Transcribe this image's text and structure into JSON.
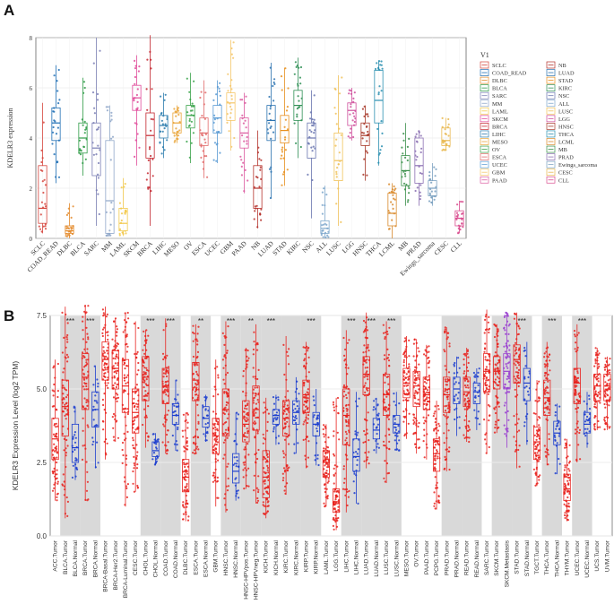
{
  "panel_labels": {
    "a": "A",
    "b": "B"
  },
  "chart_data": [
    {
      "type": "box",
      "panel": "A",
      "title": "",
      "xlabel": "",
      "ylabel": "KDELR3 expression",
      "ylim": [
        0,
        8
      ],
      "yticks": [
        0,
        2,
        4,
        6,
        8
      ],
      "grid": true,
      "legend_title": "V1",
      "legend_position": "right",
      "categories": [
        "SCLC",
        "COAD_READ",
        "DLBC",
        "BLCA",
        "SARC",
        "MM",
        "LAML",
        "SKCM",
        "BRCA",
        "LIHC",
        "MESO",
        "OV",
        "ESCA",
        "UCEC",
        "GBM",
        "PAAD",
        "NB",
        "LUAD",
        "STAD",
        "KIRC",
        "NSC",
        "ALL",
        "LUSC",
        "LGG",
        "HNSC",
        "THCA",
        "LCML",
        "MB",
        "PRAD",
        "Ewings_sarcoma",
        "CESC",
        "CLL"
      ],
      "colors": [
        "#d6453d",
        "#1f6fb5",
        "#e48a2a",
        "#2f9b47",
        "#7b7fb5",
        "#8fa7c9",
        "#f2c94c",
        "#e04a9a",
        "#c4262f",
        "#2b7cae",
        "#e9a53a",
        "#3aa34a",
        "#e26b6b",
        "#5a9bd4",
        "#f5c76a",
        "#dc5aa0",
        "#b5312b",
        "#2a72b0",
        "#e8901f",
        "#2f8f55",
        "#6a76b0",
        "#7fa8cc",
        "#f0c25a",
        "#cf4e9b",
        "#a83a2a",
        "#2a8fb0",
        "#d98a2c",
        "#3a8f4a",
        "#8a6fb2",
        "#7aa0c0",
        "#e9b850",
        "#d94b8e"
      ],
      "stats": [
        {
          "min": 0.2,
          "q1": 0.6,
          "median": 1.2,
          "q3": 2.9,
          "max": 5.4
        },
        {
          "min": 2.2,
          "q1": 3.9,
          "median": 4.6,
          "q3": 5.2,
          "max": 6.9
        },
        {
          "min": 0.0,
          "q1": 0.2,
          "median": 0.3,
          "q3": 0.5,
          "max": 1.4
        },
        {
          "min": 2.5,
          "q1": 3.4,
          "median": 4.0,
          "q3": 4.6,
          "max": 6.4
        },
        {
          "min": 0.5,
          "q1": 2.5,
          "median": 3.6,
          "q3": 4.6,
          "max": 8.0
        },
        {
          "min": 0.1,
          "q1": 0.2,
          "median": 1.5,
          "q3": 3.9,
          "max": 5.3
        },
        {
          "min": 0.1,
          "q1": 0.3,
          "median": 0.6,
          "q3": 1.2,
          "max": 2.4
        },
        {
          "min": 2.9,
          "q1": 5.1,
          "median": 5.6,
          "q3": 6.1,
          "max": 7.3
        },
        {
          "min": 0.5,
          "q1": 3.2,
          "median": 4.1,
          "q3": 5.0,
          "max": 8.1
        },
        {
          "min": 3.2,
          "q1": 4.0,
          "median": 4.5,
          "q3": 4.9,
          "max": 5.8
        },
        {
          "min": 3.8,
          "q1": 4.2,
          "median": 4.6,
          "q3": 5.0,
          "max": 5.3
        },
        {
          "min": 3.0,
          "q1": 4.4,
          "median": 4.9,
          "q3": 5.3,
          "max": 6.6
        },
        {
          "min": 2.4,
          "q1": 3.7,
          "median": 4.2,
          "q3": 4.8,
          "max": 6.3
        },
        {
          "min": 3.0,
          "q1": 4.2,
          "median": 4.8,
          "q3": 5.3,
          "max": 6.3
        },
        {
          "min": 3.5,
          "q1": 4.7,
          "median": 5.4,
          "q3": 5.8,
          "max": 7.9
        },
        {
          "min": 1.8,
          "q1": 3.6,
          "median": 4.2,
          "q3": 4.8,
          "max": 5.8
        },
        {
          "min": 0.4,
          "q1": 1.2,
          "median": 2.0,
          "q3": 2.9,
          "max": 4.3
        },
        {
          "min": 1.6,
          "q1": 3.9,
          "median": 4.7,
          "q3": 5.3,
          "max": 7.0
        },
        {
          "min": 2.1,
          "q1": 3.8,
          "median": 4.3,
          "q3": 4.9,
          "max": 6.8
        },
        {
          "min": 3.2,
          "q1": 4.7,
          "median": 5.3,
          "q3": 5.9,
          "max": 7.2
        },
        {
          "min": 0.8,
          "q1": 3.2,
          "median": 4.0,
          "q3": 4.6,
          "max": 5.9
        },
        {
          "min": 0.0,
          "q1": 0.2,
          "median": 0.4,
          "q3": 0.7,
          "max": 2.1
        },
        {
          "min": 0.5,
          "q1": 2.3,
          "median": 3.1,
          "q3": 4.2,
          "max": 6.5
        },
        {
          "min": 3.9,
          "q1": 4.5,
          "median": 5.1,
          "q3": 5.4,
          "max": 6.0
        },
        {
          "min": 2.3,
          "q1": 3.7,
          "median": 4.1,
          "q3": 4.6,
          "max": 5.3
        },
        {
          "min": 2.9,
          "q1": 4.6,
          "median": 5.5,
          "q3": 6.7,
          "max": 7.1
        },
        {
          "min": 0.0,
          "q1": 0.5,
          "median": 1.0,
          "q3": 1.8,
          "max": 2.2
        },
        {
          "min": 1.3,
          "q1": 2.1,
          "median": 2.7,
          "q3": 3.3,
          "max": 4.6
        },
        {
          "min": 1.3,
          "q1": 2.2,
          "median": 2.9,
          "q3": 4.0,
          "max": 4.3
        },
        {
          "min": 1.3,
          "q1": 1.7,
          "median": 2.0,
          "q3": 2.3,
          "max": 3.0
        },
        {
          "min": 3.5,
          "q1": 3.7,
          "median": 3.9,
          "q3": 4.4,
          "max": 4.8
        },
        {
          "min": 0.2,
          "q1": 0.5,
          "median": 0.8,
          "q3": 1.1,
          "max": 1.5
        }
      ]
    },
    {
      "type": "box",
      "panel": "B",
      "title": "",
      "xlabel": "",
      "ylabel": "KDELR3 Expression Level (log2 TPM)",
      "ylim": [
        0,
        7.5
      ],
      "yticks": [
        0.0,
        2.5,
        5.0,
        7.5
      ],
      "ytick_labels": [
        "0.0",
        "2.5",
        "5.0",
        "7.5"
      ],
      "grid": true,
      "legend": "none",
      "tumor_color": "#e8231f",
      "normal_color": "#1c3ecf",
      "metastasis_color": "#9a3fd0",
      "categories": [
        "ACC.Tumor",
        "BLCA.Tumor",
        "BLCA.Normal",
        "BRCA.Tumor",
        "BRCA.Normal",
        "BRCA-Basal.Tumor",
        "BRCA-Her2.Tumor",
        "BRCA-Luminal.Tumor",
        "CESC.Tumor",
        "CHOL.Tumor",
        "CHOL.Normal",
        "COAD.Tumor",
        "COAD.Normal",
        "DLBC.Tumor",
        "ESCA.Tumor",
        "ESCA.Normal",
        "GBM.Tumor",
        "HNSC.Tumor",
        "HNSC.Normal",
        "HNSC-HPVpos.Tumor",
        "HNSC-HPVneg.Tumor",
        "KICH.Tumor",
        "KICH.Normal",
        "KIRC.Tumor",
        "KIRC.Normal",
        "KIRP.Tumor",
        "KIRP.Normal",
        "LAML.Tumor",
        "LGG.Tumor",
        "LIHC.Tumor",
        "LIHC.Normal",
        "LUAD.Tumor",
        "LUAD.Normal",
        "LUSC.Tumor",
        "LUSC.Normal",
        "MESO.Tumor",
        "OV.Tumor",
        "PAAD.Tumor",
        "PCPG.Tumor",
        "PRAD.Tumor",
        "PRAD.Normal",
        "READ.Tumor",
        "READ.Normal",
        "SARC.Tumor",
        "SKCM.Tumor",
        "SKCM.Metastasis",
        "STAD.Tumor",
        "STAD.Normal",
        "TGCT.Tumor",
        "THCA.Tumor",
        "THCA.Normal",
        "THYM.Tumor",
        "UCEC.Tumor",
        "UCEC.Normal",
        "UCS.Tumor",
        "UVM.Tumor"
      ],
      "group_kind": [
        "T",
        "T",
        "N",
        "T",
        "N",
        "T",
        "T",
        "T",
        "T",
        "T",
        "N",
        "T",
        "N",
        "T",
        "T",
        "N",
        "T",
        "T",
        "N",
        "T",
        "T",
        "T",
        "N",
        "T",
        "N",
        "T",
        "N",
        "T",
        "T",
        "T",
        "N",
        "T",
        "N",
        "T",
        "N",
        "T",
        "T",
        "T",
        "T",
        "T",
        "N",
        "T",
        "N",
        "T",
        "T",
        "M",
        "T",
        "N",
        "T",
        "T",
        "N",
        "T",
        "T",
        "N",
        "T",
        "T"
      ],
      "shaded_bands": [
        [
          1,
          2
        ],
        [
          3,
          4
        ],
        [
          9,
          10
        ],
        [
          11,
          12
        ],
        [
          14,
          15
        ],
        [
          17,
          18
        ],
        [
          19,
          20
        ],
        [
          21,
          22
        ],
        [
          23,
          24
        ],
        [
          25,
          26
        ],
        [
          29,
          30
        ],
        [
          31,
          32
        ],
        [
          33,
          34
        ],
        [
          39,
          40
        ],
        [
          41,
          42
        ],
        [
          44,
          45
        ],
        [
          46,
          47
        ],
        [
          49,
          50
        ],
        [
          52,
          53
        ]
      ],
      "significance": [
        {
          "between": [
            1,
            2
          ],
          "label": "***"
        },
        {
          "between": [
            3,
            4
          ],
          "label": "***"
        },
        {
          "between": [
            9,
            10
          ],
          "label": "***"
        },
        {
          "between": [
            11,
            12
          ],
          "label": "***"
        },
        {
          "between": [
            14,
            15
          ],
          "label": "**"
        },
        {
          "between": [
            17,
            18
          ],
          "label": "***"
        },
        {
          "between": [
            19,
            20
          ],
          "label": "**"
        },
        {
          "between": [
            21,
            22
          ],
          "label": "***"
        },
        {
          "between": [
            25,
            26
          ],
          "label": "***"
        },
        {
          "between": [
            29,
            30
          ],
          "label": "***"
        },
        {
          "between": [
            31,
            32
          ],
          "label": "***"
        },
        {
          "between": [
            33,
            34
          ],
          "label": "***"
        },
        {
          "between": [
            46,
            47
          ],
          "label": "***"
        },
        {
          "between": [
            49,
            50
          ],
          "label": "***"
        },
        {
          "between": [
            52,
            53
          ],
          "label": "***"
        }
      ],
      "stats": [
        {
          "min": 1.2,
          "q1": 2.6,
          "median": 3.3,
          "q3": 4.0,
          "max": 6.0
        },
        {
          "min": 0.6,
          "q1": 3.4,
          "median": 4.4,
          "q3": 5.3,
          "max": 7.8
        },
        {
          "min": 1.9,
          "q1": 2.5,
          "median": 3.0,
          "q3": 3.8,
          "max": 4.4
        },
        {
          "min": 1.2,
          "q1": 4.3,
          "median": 5.4,
          "q3": 6.2,
          "max": 7.9
        },
        {
          "min": 2.3,
          "q1": 3.7,
          "median": 4.3,
          "q3": 4.9,
          "max": 5.8
        },
        {
          "min": 2.6,
          "q1": 5.3,
          "median": 6.0,
          "q3": 6.6,
          "max": 7.8
        },
        {
          "min": 3.2,
          "q1": 5.0,
          "median": 5.7,
          "q3": 6.3,
          "max": 7.4
        },
        {
          "min": 1.0,
          "q1": 4.2,
          "median": 5.1,
          "q3": 6.0,
          "max": 7.6
        },
        {
          "min": 1.5,
          "q1": 3.5,
          "median": 4.2,
          "q3": 5.0,
          "max": 7.3
        },
        {
          "min": 3.0,
          "q1": 4.6,
          "median": 5.4,
          "q3": 6.1,
          "max": 7.0
        },
        {
          "min": 2.4,
          "q1": 2.7,
          "median": 2.9,
          "q3": 3.2,
          "max": 3.5
        },
        {
          "min": 2.8,
          "q1": 4.5,
          "median": 5.1,
          "q3": 5.7,
          "max": 7.4
        },
        {
          "min": 2.9,
          "q1": 3.8,
          "median": 4.1,
          "q3": 4.5,
          "max": 5.3
        },
        {
          "min": 0.5,
          "q1": 1.5,
          "median": 2.0,
          "q3": 2.6,
          "max": 4.2
        },
        {
          "min": 2.8,
          "q1": 4.6,
          "median": 5.3,
          "q3": 5.9,
          "max": 7.2
        },
        {
          "min": 3.2,
          "q1": 3.7,
          "median": 4.0,
          "q3": 4.4,
          "max": 4.8
        },
        {
          "min": 1.0,
          "q1": 2.8,
          "median": 3.4,
          "q3": 4.0,
          "max": 6.0
        },
        {
          "min": 0.8,
          "q1": 3.4,
          "median": 4.3,
          "q3": 5.0,
          "max": 7.3
        },
        {
          "min": 1.2,
          "q1": 1.8,
          "median": 2.2,
          "q3": 2.8,
          "max": 4.2
        },
        {
          "min": 1.6,
          "q1": 3.2,
          "median": 3.8,
          "q3": 4.6,
          "max": 6.4
        },
        {
          "min": 1.1,
          "q1": 3.6,
          "median": 4.3,
          "q3": 5.1,
          "max": 7.2
        },
        {
          "min": 0.6,
          "q1": 1.3,
          "median": 2.0,
          "q3": 2.9,
          "max": 4.7
        },
        {
          "min": 3.1,
          "q1": 3.8,
          "median": 4.1,
          "q3": 4.3,
          "max": 4.8
        },
        {
          "min": 1.4,
          "q1": 3.4,
          "median": 4.0,
          "q3": 4.6,
          "max": 6.8
        },
        {
          "min": 2.8,
          "q1": 3.8,
          "median": 4.2,
          "q3": 4.6,
          "max": 5.4
        },
        {
          "min": 2.3,
          "q1": 4.2,
          "median": 4.8,
          "q3": 5.3,
          "max": 6.6
        },
        {
          "min": 2.4,
          "q1": 3.4,
          "median": 3.8,
          "q3": 4.2,
          "max": 5.0
        },
        {
          "min": 1.0,
          "q1": 2.0,
          "median": 2.5,
          "q3": 2.9,
          "max": 3.8
        },
        {
          "min": 0.2,
          "q1": 0.8,
          "median": 1.1,
          "q3": 1.6,
          "max": 4.7
        },
        {
          "min": 0.8,
          "q1": 3.1,
          "median": 4.1,
          "q3": 5.0,
          "max": 7.0
        },
        {
          "min": 1.1,
          "q1": 2.2,
          "median": 2.7,
          "q3": 3.3,
          "max": 4.9
        },
        {
          "min": 2.3,
          "q1": 4.8,
          "median": 5.5,
          "q3": 6.1,
          "max": 7.6
        },
        {
          "min": 2.8,
          "q1": 3.3,
          "median": 3.6,
          "q3": 4.0,
          "max": 4.7
        },
        {
          "min": 1.8,
          "q1": 4.1,
          "median": 4.8,
          "q3": 5.5,
          "max": 7.3
        },
        {
          "min": 2.9,
          "q1": 3.5,
          "median": 3.8,
          "q3": 4.1,
          "max": 4.9
        },
        {
          "min": 3.3,
          "q1": 4.7,
          "median": 5.2,
          "q3": 5.7,
          "max": 6.8
        },
        {
          "min": 2.8,
          "q1": 4.4,
          "median": 5.1,
          "q3": 5.6,
          "max": 6.7
        },
        {
          "min": 2.6,
          "q1": 4.3,
          "median": 4.8,
          "q3": 5.4,
          "max": 6.5
        },
        {
          "min": 0.9,
          "q1": 2.2,
          "median": 2.8,
          "q3": 3.3,
          "max": 4.6
        },
        {
          "min": 2.2,
          "q1": 4.2,
          "median": 4.8,
          "q3": 5.4,
          "max": 7.1
        },
        {
          "min": 3.4,
          "q1": 4.5,
          "median": 5.0,
          "q3": 5.4,
          "max": 6.1
        },
        {
          "min": 3.2,
          "q1": 4.4,
          "median": 4.9,
          "q3": 5.4,
          "max": 6.4
        },
        {
          "min": 3.6,
          "q1": 4.5,
          "median": 4.9,
          "q3": 5.2,
          "max": 5.7
        },
        {
          "min": 2.8,
          "q1": 4.9,
          "median": 5.6,
          "q3": 6.2,
          "max": 7.7
        },
        {
          "min": 3.5,
          "q1": 5.0,
          "median": 5.6,
          "q3": 6.1,
          "max": 7.2
        },
        {
          "min": 3.0,
          "q1": 5.0,
          "median": 5.6,
          "q3": 6.2,
          "max": 7.6
        },
        {
          "min": 2.3,
          "q1": 5.2,
          "median": 6.0,
          "q3": 6.5,
          "max": 7.6
        },
        {
          "min": 3.1,
          "q1": 4.6,
          "median": 5.2,
          "q3": 5.7,
          "max": 6.6
        },
        {
          "min": 1.7,
          "q1": 2.6,
          "median": 3.2,
          "q3": 3.7,
          "max": 5.3
        },
        {
          "min": 2.4,
          "q1": 4.1,
          "median": 4.7,
          "q3": 5.3,
          "max": 6.6
        },
        {
          "min": 2.1,
          "q1": 3.1,
          "median": 3.5,
          "q3": 3.9,
          "max": 4.5
        },
        {
          "min": 0.5,
          "q1": 1.2,
          "median": 1.6,
          "q3": 2.1,
          "max": 3.3
        },
        {
          "min": 2.5,
          "q1": 4.5,
          "median": 5.2,
          "q3": 5.7,
          "max": 7.2
        },
        {
          "min": 3.0,
          "q1": 3.5,
          "median": 3.8,
          "q3": 4.2,
          "max": 4.9
        },
        {
          "min": 3.6,
          "q1": 4.6,
          "median": 5.1,
          "q3": 5.5,
          "max": 6.4
        },
        {
          "min": 3.6,
          "q1": 4.6,
          "median": 5.1,
          "q3": 5.5,
          "max": 6.1
        }
      ]
    }
  ]
}
